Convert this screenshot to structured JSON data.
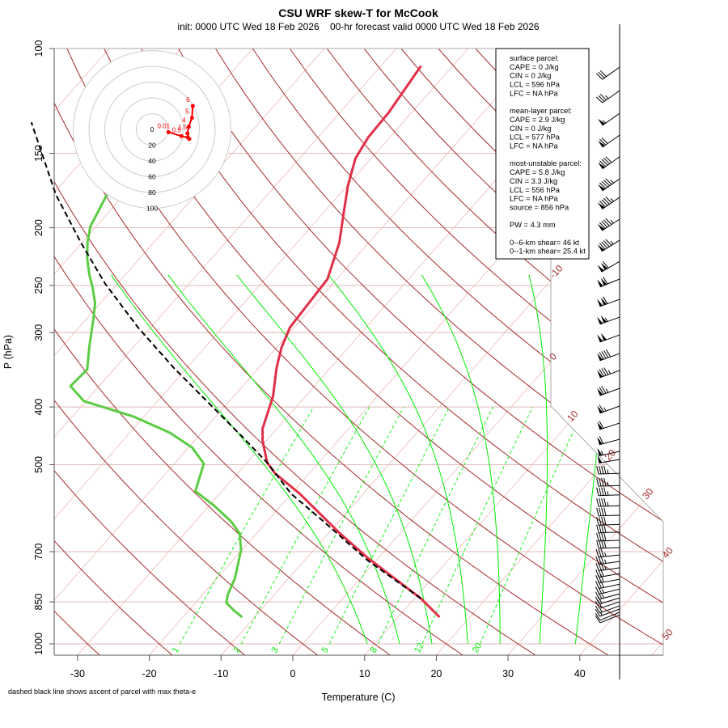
{
  "header": {
    "title": "CSU WRF skew-T for McCook",
    "subtitle": "init: 0000 UTC Wed 18 Feb 2026    00-hr forecast valid 0000 UTC Wed 18 Feb 2026"
  },
  "footnote": "dashed black line shows ascent of parcel with max theta-e",
  "info_box": {
    "lines": [
      "surface parcel:",
      "CAPE = 0 J/kg",
      "CIN = 0 J/kg",
      "LCL = 596 hPa",
      "LFC = NA hPa",
      "",
      "mean-layer parcel:",
      "CAPE = 2.9 J/kg",
      "CIN = 0 J/kg",
      "LCL = 577 hPa",
      "LFC = NA hPa",
      "",
      "most-unstable parcel:",
      "CAPE = 5.8 J/kg",
      "CIN = 3.3 J/kg",
      "LCL = 556 hPa",
      "LFC = NA hPa",
      "source = 856 hPa",
      "",
      "PW =  4.3 mm",
      "",
      "0--6-km shear= 46 kt",
      "0--1-km shear= 25.4 kt"
    ]
  },
  "colors": {
    "temperature": "#e03049",
    "dewpoint": "#5ccc44",
    "parcel": "#000000",
    "dry_adiabat": "#a52a2a",
    "isotherm": "#efb9b9",
    "isobar": "#e0b8b8",
    "moist_adiabat": "#00ee00",
    "mixing_ratio": "#00ee00",
    "hodograph": "#ff0000",
    "hodo_ring": "#cccccc"
  },
  "chart_data": {
    "type": "skew-t",
    "title": "CSU WRF skew-T for McCook",
    "xlabel": "Temperature (C)",
    "ylabel": "P (hPa)",
    "x_ticks": [
      -30,
      -20,
      -10,
      0,
      10,
      20,
      30,
      40
    ],
    "y_ticks": [
      100,
      150,
      200,
      250,
      300,
      400,
      500,
      700,
      850,
      1000
    ],
    "y_scale": "log",
    "isotherm_labels": [
      -10,
      0,
      10,
      20,
      30,
      40,
      50
    ],
    "mixing_ratio_lines_gkg": [
      1,
      2,
      3,
      5,
      8,
      12,
      20
    ],
    "moist_adiabat_T1000": [
      9,
      13.5,
      18,
      23,
      27.5,
      33,
      38
    ],
    "dry_adiabat_theta_range_C": [
      -40,
      190
    ],
    "temperature": {
      "p": [
        902,
        839,
        718,
        653,
        559,
        517,
        496,
        456,
        435,
        384,
        344,
        318,
        294,
        272,
        244,
        212,
        190,
        170,
        153,
        141,
        128,
        107
      ],
      "T": [
        15.8,
        10.9,
        -1.4,
        -8.3,
        -18.9,
        -24.8,
        -27.2,
        -30.5,
        -32.0,
        -34.5,
        -37.5,
        -39.3,
        -40.6,
        -40.9,
        -41.3,
        -44.1,
        -47.0,
        -49.9,
        -52.2,
        -53.0,
        -53.2,
        -54.4
      ]
    },
    "dewpoint": {
      "p": [
        902,
        880,
        853,
        826,
        776,
        696,
        653,
        623,
        586,
        554,
        498,
        468,
        442,
        415,
        391,
        369,
        346,
        318,
        285,
        268,
        252,
        240,
        226,
        212,
        199,
        190,
        176
      ],
      "T": [
        -11.7,
        -13.6,
        -15.7,
        -16.5,
        -17.5,
        -20.1,
        -22.3,
        -25.0,
        -29.3,
        -33.7,
        -35.9,
        -39.5,
        -44.4,
        -51.5,
        -60.3,
        -64.0,
        -63.7,
        -66.1,
        -69.0,
        -70.7,
        -73.0,
        -75.0,
        -77.2,
        -79.2,
        -80.8,
        -81.4,
        -82.4
      ]
    },
    "parcel": {
      "p": [
        839,
        725,
        623,
        559,
        496,
        449,
        396,
        344,
        294,
        248,
        212,
        176,
        133
      ],
      "T": [
        10.9,
        -1.1,
        -12.1,
        -20.1,
        -27.2,
        -33.8,
        -42.3,
        -51.8,
        -61.8,
        -71.8,
        -80.1,
        -89.5,
        -101.8
      ]
    },
    "winds": {
      "p": [
        107.5,
        117.7,
        128.5,
        139.8,
        152,
        165.5,
        177.8,
        193.5,
        209.9,
        227.8,
        243.9,
        263.8,
        282.6,
        302.7,
        325.3,
        347.4,
        372.2,
        398.6,
        425.7,
        453.2,
        475,
        490,
        517,
        542,
        562,
        586,
        608,
        630,
        649,
        670,
        689,
        709,
        727,
        745,
        762,
        779,
        794,
        809,
        824,
        837,
        850,
        863,
        874,
        885,
        894
      ],
      "dir": [
        235,
        235,
        235,
        235,
        235,
        235,
        236,
        237,
        238,
        240,
        248,
        250,
        250,
        250,
        250,
        250,
        250,
        250,
        252,
        255,
        258,
        260,
        268,
        268,
        268,
        268,
        268,
        268,
        268,
        268,
        268,
        264,
        262,
        262,
        260,
        260,
        258,
        256,
        255,
        253,
        252,
        250,
        250,
        248,
        248
      ],
      "speed_kt": [
        30,
        35,
        55,
        70,
        90,
        95,
        95,
        95,
        95,
        110,
        110,
        110,
        105,
        100,
        90,
        85,
        75,
        65,
        60,
        60,
        55,
        50,
        45,
        45,
        45,
        45,
        40,
        40,
        40,
        40,
        40,
        35,
        35,
        35,
        30,
        30,
        30,
        25,
        25,
        20,
        20,
        15,
        15,
        10,
        10
      ]
    },
    "hodograph": {
      "ring_labels": [
        "0",
        "20",
        "40",
        "60",
        "80",
        "100"
      ],
      "u": [
        20.8,
        37.2,
        45.4,
        47.2,
        44.8,
        46.5,
        50.6,
        51.6
      ],
      "v": [
        -3.4,
        -8.5,
        -10.3,
        -12.0,
        -5.1,
        3.4,
        14.7,
        29.7
      ],
      "labels": [
        "0.01",
        "0.5",
        "",
        "",
        "1.5",
        "4",
        "5",
        "6"
      ]
    }
  }
}
